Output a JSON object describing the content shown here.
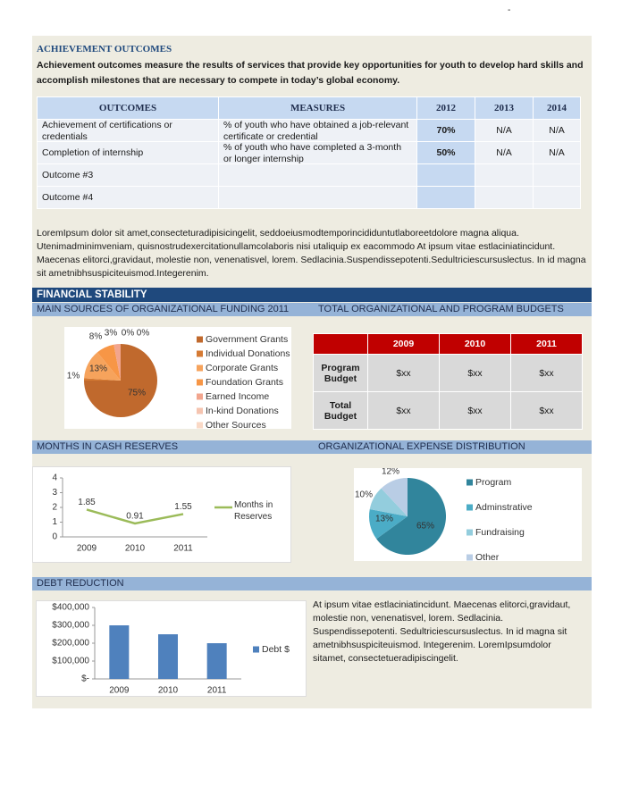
{
  "page_mark": "-",
  "achievement": {
    "title": "ACHIEVEMENT OUTCOMES",
    "intro": "Achievement outcomes measure the results of services that provide key opportunities for youth to develop hard skills and accomplish milestones that are necessary to compete in today’s global economy.",
    "table": {
      "header": [
        "OUTCOMES",
        "MEASURES",
        "2012",
        "2013",
        "2014"
      ],
      "rows": [
        [
          "Achievement of certifications or credentials",
          "% of youth who have obtained a job-relevant certificate or credential",
          "70%",
          "N/A",
          "N/A"
        ],
        [
          "Completion of internship",
          "% of youth who have completed a 3-month or longer internship",
          "50%",
          "N/A",
          "N/A"
        ],
        [
          "Outcome #3"
        ],
        [
          "Outcome #4"
        ]
      ]
    }
  },
  "body_text": "LoremIpsum dolor sit amet,consecteturadipisicingelit, seddoeiusmodtemporincididuntutlaboreetdolore magna aliqua. Utenimadminimveniam, quisnostrudexercitationullamcolaboris nisi utaliquip ex eacommodo At ipsum vitae estlaciniatincidunt. Maecenas elitorci,gravidaut, molestie non, venenatisvel, lorem. Sedlacinia.Suspendissepotenti.Sedultriciescursuslectus. In id magna sit ametnibhsuspiciteuismod.Integerenim.",
  "financial_heading": "FINANCIAL STABILITY",
  "budget_table": {
    "title": "TOTAL ORGANIZATIONAL AND PROGRAM BUDGETS",
    "header": [
      "2009",
      "2010",
      "2011"
    ],
    "rows": [
      {
        "label": "Program Budget",
        "values": [
          "$xx",
          "$xx",
          "$xx"
        ]
      },
      {
        "label": "Total Budget",
        "values": [
          "$xx",
          "$xx",
          "$xx"
        ]
      }
    ]
  },
  "debt_text": "At ipsum vitae estlaciniatincidunt. Maecenas elitorci,gravidaut, molestie non, venenatisvel, lorem. Sedlacinia. Suspendissepotenti. Sedultriciescursuslectus. In id magna sit ametnibhsuspiciteuismod. Integerenim. LoremIpsumdolor sitamet, consectetueradipiscingelit.",
  "chart_data": [
    {
      "type": "pie",
      "title": "MAIN SOURCES OF ORGANIZATIONAL FUNDING 2011",
      "categories": [
        "Government Grants",
        "Individual Donations",
        "Corporate Grants",
        "Foundation Grants",
        "Earned Income",
        "In-kind Donations",
        "Other Sources"
      ],
      "values": [
        75,
        1,
        13,
        8,
        3,
        0,
        0
      ],
      "value_labels": [
        "75%",
        "1%",
        "13%",
        "8%",
        "3%",
        "0%",
        "0%"
      ],
      "colors": [
        "#C0692D",
        "#D57A33",
        "#F6A35C",
        "#F79646",
        "#F2A58E",
        "#F5C4B0",
        "#FAD9C6"
      ]
    },
    {
      "type": "line",
      "title": "MONTHS IN CASH RESERVES",
      "categories": [
        "2009",
        "2010",
        "2011"
      ],
      "series": [
        {
          "name": "Months in Reserves",
          "color": "#9BBB59",
          "values": [
            1.85,
            0.91,
            1.55
          ]
        }
      ],
      "ylim": [
        0,
        4
      ],
      "yticks": [
        0,
        1,
        2,
        3,
        4
      ],
      "grid": false
    },
    {
      "type": "pie",
      "title": "ORGANIZATIONAL EXPENSE DISTRIBUTION",
      "categories": [
        "Program",
        "Adminstrative",
        "Fundraising",
        "Other"
      ],
      "values": [
        65,
        13,
        10,
        12
      ],
      "value_labels": [
        "65%",
        "13%",
        "10%",
        "12%"
      ],
      "colors": [
        "#31859C",
        "#4BACC6",
        "#93CDDD",
        "#B9CDE5"
      ]
    },
    {
      "type": "bar",
      "title": "DEBT REDUCTION",
      "categories": [
        "2009",
        "2010",
        "2011"
      ],
      "series": [
        {
          "name": "Debt $",
          "color": "#4F81BD",
          "values": [
            300000,
            250000,
            200000
          ]
        }
      ],
      "ylim": [
        0,
        400000
      ],
      "yticks": [
        {
          "value": 0,
          "label": "$-"
        },
        {
          "value": 100000,
          "label": "$100,000"
        },
        {
          "value": 200000,
          "label": "$200,000"
        },
        {
          "value": 300000,
          "label": "$300,000"
        },
        {
          "value": 400000,
          "label": "$400,000"
        }
      ],
      "grid": false
    }
  ]
}
